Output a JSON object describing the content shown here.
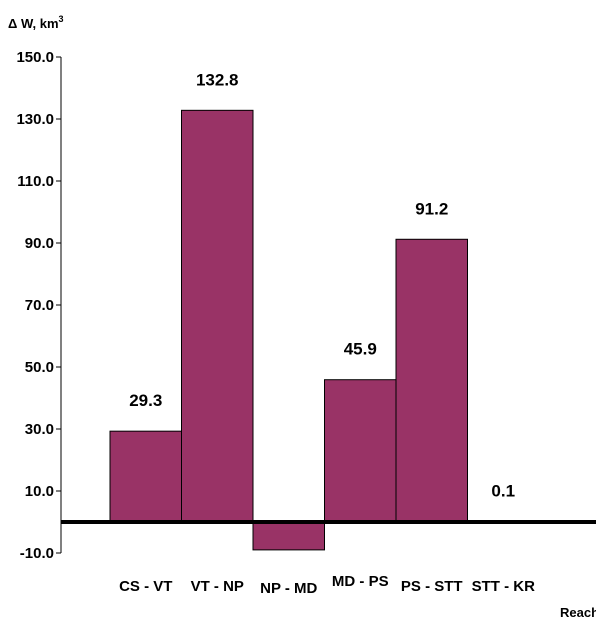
{
  "chart_data": {
    "type": "bar",
    "ylabel": "Δ W, km",
    "ylabel_sup": "3",
    "xlabel": "Reaches",
    "ylim": [
      -10,
      150
    ],
    "yticks": [
      -10,
      10,
      30,
      50,
      70,
      90,
      110,
      130,
      150
    ],
    "ytick_labels": [
      "-10.0",
      "10.0",
      "30.0",
      "50.0",
      "70.0",
      "90.0",
      "110.0",
      "130.0",
      "150.0"
    ],
    "categories": [
      "CS - VT",
      "VT - NP",
      "NP - MD",
      "MD - PS",
      "PS - STT",
      "STT - KR"
    ],
    "values": [
      29.3,
      132.8,
      -9.0,
      45.9,
      91.2,
      0.1
    ],
    "data_labels": [
      "29.3",
      "132.8",
      "",
      "45.9",
      "91.2",
      "0.1"
    ],
    "bar_color": "#993366",
    "grid": false,
    "legend": "none"
  }
}
